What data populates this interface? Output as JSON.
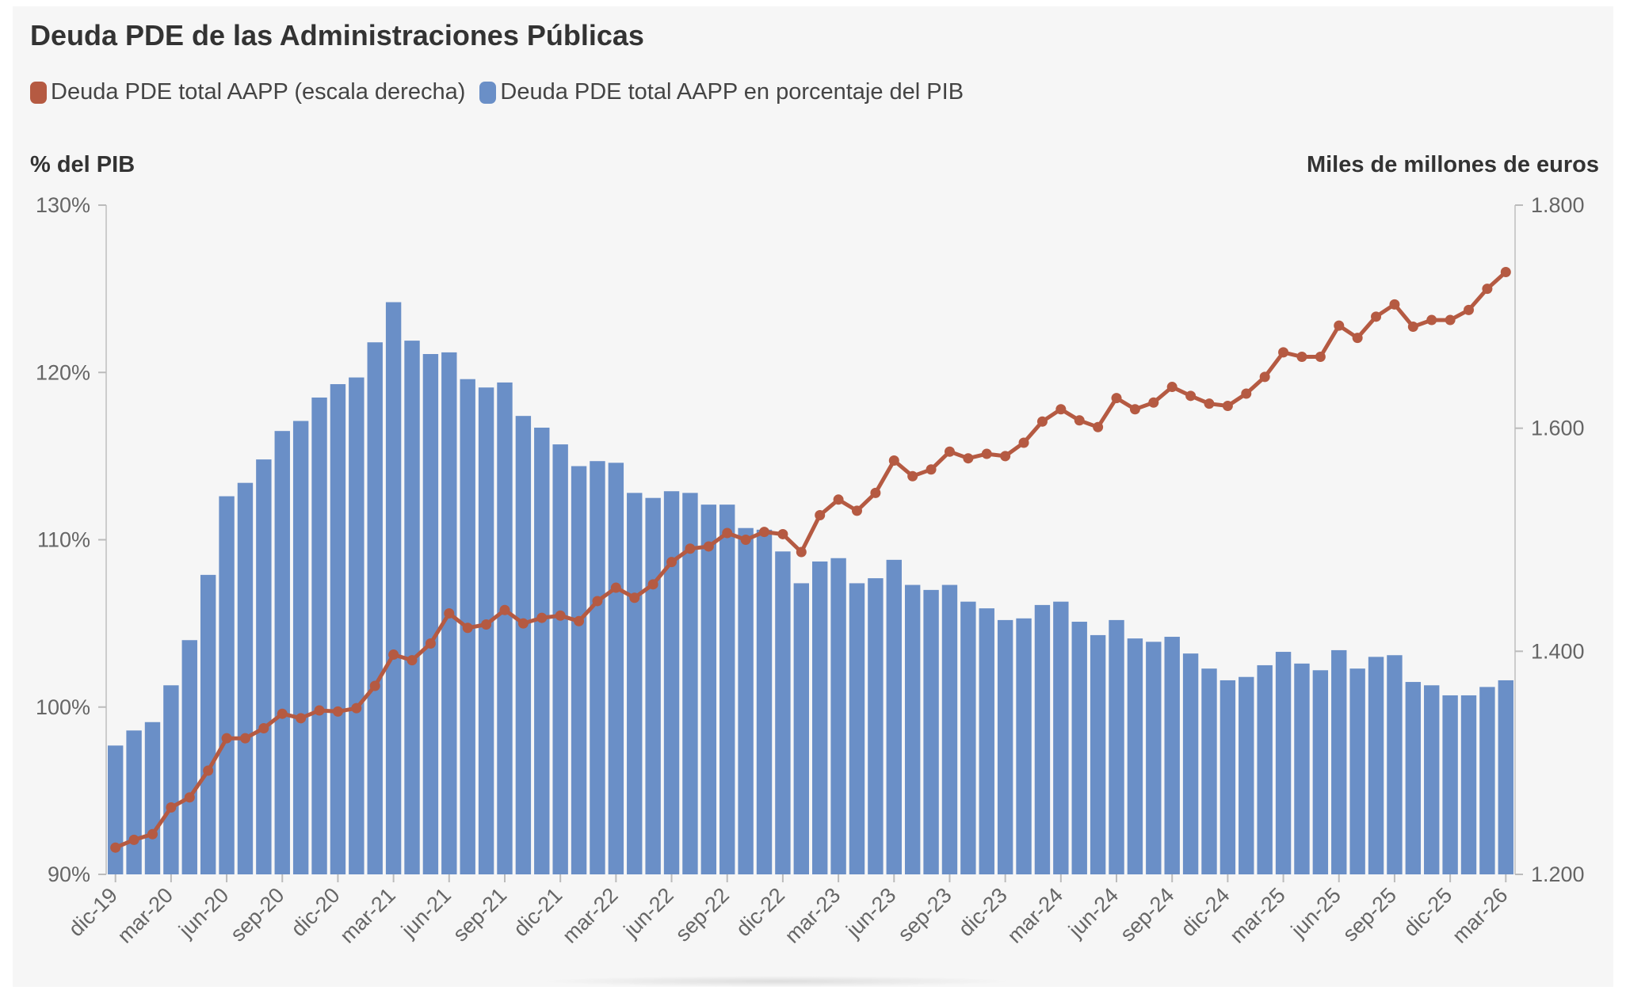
{
  "title": "Deuda PDE de las Administraciones Públicas",
  "legend": [
    {
      "label": "Deuda PDE total AAPP (escala derecha)",
      "color": "#b55a42"
    },
    {
      "label": "Deuda PDE total AAPP en porcentaje del PIB",
      "color": "#6a8fc7"
    }
  ],
  "axes": {
    "left_unit": "% del PIB",
    "right_unit": "Miles de millones de euros",
    "left_ticks": [
      "90%",
      "100%",
      "110%",
      "120%",
      "130%"
    ],
    "right_ticks": [
      "1.200",
      "1.400",
      "1.600",
      "1.800"
    ]
  },
  "chart_data": {
    "type": "bar",
    "categories": [
      "dic-19",
      "ene-20",
      "feb-20",
      "mar-20",
      "abr-20",
      "may-20",
      "jun-20",
      "jul-20",
      "ago-20",
      "sep-20",
      "oct-20",
      "nov-20",
      "dic-20",
      "ene-21",
      "feb-21",
      "mar-21",
      "abr-21",
      "may-21",
      "jun-21",
      "jul-21",
      "ago-21",
      "sep-21",
      "oct-21",
      "nov-21",
      "dic-21",
      "ene-22",
      "feb-22",
      "mar-22",
      "abr-22",
      "may-22",
      "jun-22",
      "jul-22",
      "ago-22",
      "sep-22",
      "oct-22",
      "nov-22",
      "dic-22",
      "ene-23",
      "feb-23",
      "mar-23",
      "abr-23",
      "may-23",
      "jun-23",
      "jul-23",
      "ago-23",
      "sep-23",
      "oct-23",
      "nov-23",
      "dic-23",
      "ene-24",
      "feb-24",
      "mar-24",
      "abr-24",
      "may-24",
      "jun-24",
      "jul-24",
      "ago-24",
      "sep-24",
      "oct-24",
      "nov-24",
      "dic-24",
      "ene-25",
      "feb-25",
      "mar-25",
      "abr-25",
      "may-25",
      "jun-25",
      "jul-25",
      "ago-25",
      "sep-25",
      "oct-25",
      "nov-25",
      "dic-25",
      "ene-26",
      "feb-26",
      "mar-26"
    ],
    "x_tick_labels": [
      "dic-19",
      "mar-20",
      "jun-20",
      "sep-20",
      "dic-20",
      "mar-21",
      "jun-21",
      "sep-21",
      "dic-21",
      "mar-22",
      "jun-22",
      "sep-22",
      "dic-22",
      "mar-23",
      "jun-23",
      "sep-23",
      "dic-23",
      "mar-24",
      "jun-24",
      "sep-24",
      "dic-24",
      "mar-25",
      "jun-25",
      "sep-25",
      "dic-25",
      "mar-26"
    ],
    "series": [
      {
        "name": "Deuda PDE total AAPP en porcentaje del PIB",
        "type": "bar",
        "axis": "left",
        "values": [
          97.7,
          98.6,
          99.1,
          101.3,
          104.0,
          107.9,
          112.6,
          113.4,
          114.8,
          116.5,
          117.1,
          118.5,
          119.3,
          119.7,
          121.8,
          124.2,
          121.9,
          121.1,
          121.2,
          119.6,
          119.1,
          119.4,
          117.4,
          116.7,
          115.7,
          114.4,
          114.7,
          114.6,
          112.8,
          112.5,
          112.9,
          112.8,
          112.1,
          112.1,
          110.7,
          110.6,
          109.3,
          107.4,
          108.7,
          108.9,
          107.4,
          107.7,
          108.8,
          107.3,
          107.0,
          107.3,
          106.3,
          105.9,
          105.2,
          105.3,
          106.1,
          106.3,
          105.1,
          104.3,
          105.2,
          104.1,
          103.9,
          104.2,
          103.2,
          102.3,
          101.6,
          101.8,
          102.5,
          103.3,
          102.6,
          102.2,
          103.4,
          102.3,
          103.0,
          103.1,
          101.5,
          101.3,
          100.7,
          100.7,
          101.2,
          101.6
        ]
      },
      {
        "name": "Deuda PDE total AAPP (escala derecha)",
        "type": "line",
        "axis": "right",
        "values": [
          1224,
          1231,
          1236,
          1260,
          1269,
          1293,
          1322,
          1322,
          1331,
          1344,
          1340,
          1347,
          1346,
          1349,
          1369,
          1397,
          1392,
          1407,
          1434,
          1421,
          1424,
          1437,
          1425,
          1430,
          1432,
          1427,
          1445,
          1457,
          1448,
          1460,
          1480,
          1492,
          1494,
          1506,
          1500,
          1507,
          1505,
          1489,
          1522,
          1536,
          1526,
          1542,
          1571,
          1557,
          1563,
          1579,
          1573,
          1577,
          1575,
          1587,
          1606,
          1617,
          1607,
          1601,
          1627,
          1617,
          1623,
          1637,
          1629,
          1622,
          1620,
          1631,
          1646,
          1668,
          1664,
          1664,
          1692,
          1681,
          1700,
          1711,
          1691,
          1697,
          1697,
          1706,
          1725,
          1740
        ]
      }
    ],
    "ylim_left": [
      90,
      130
    ],
    "ylim_right": [
      1200,
      1800
    ],
    "grid": false,
    "legend_position": "top-left"
  }
}
